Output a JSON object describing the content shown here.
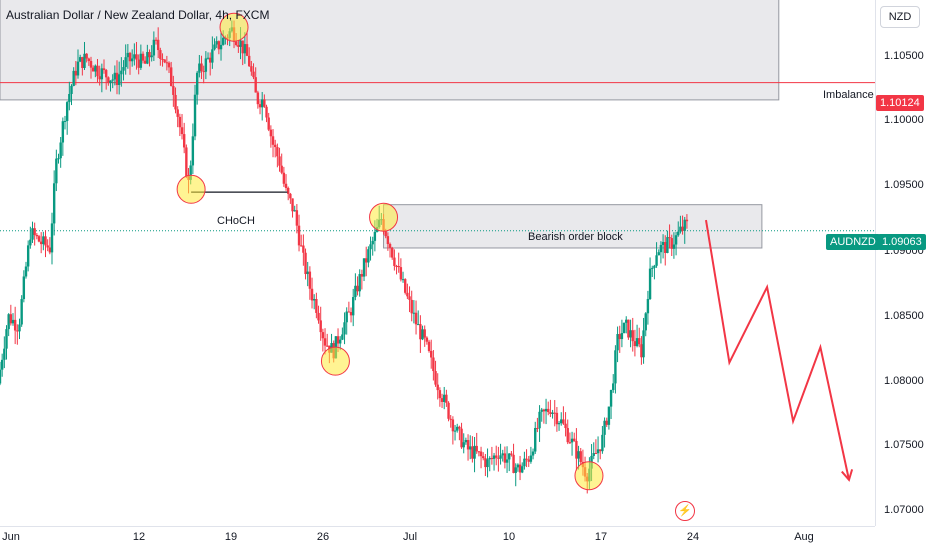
{
  "header": {
    "title": "Australian Dollar / New Zealand Dollar, 4h, FXCM",
    "currency": "NZD"
  },
  "chart_data": {
    "type": "candlestick",
    "symbol": "AUDNZD",
    "ylim": [
      1.0695,
      1.10715
    ],
    "y_ticks": [
      "1.10500",
      "1.10000",
      "1.09500",
      "1.09000",
      "1.08500",
      "1.08000",
      "1.07500",
      "1.07000"
    ],
    "y_tick_values": [
      1.105,
      1.1,
      1.095,
      1.09,
      1.085,
      1.08,
      1.075,
      1.07
    ],
    "x_ticks": [
      "Jun",
      "12",
      "19",
      "26",
      "Jul",
      "10",
      "17",
      "24",
      "Aug"
    ],
    "x_tick_days": [
      1,
      12,
      19,
      26,
      32,
      41,
      48,
      55,
      63
    ],
    "xlim_days": [
      0.7,
      68
    ],
    "last_price": {
      "label": "AUDNZD",
      "value": "1.09063",
      "numeric": 1.09063,
      "color": "#089981"
    },
    "imbalance": {
      "label": "Imbalance",
      "value": "1.10124",
      "numeric": 1.10124,
      "color": "#f23645",
      "zone": [
        1.1,
        1.1087
      ],
      "zone_days": [
        0.7,
        60.6
      ]
    },
    "order_block": {
      "label": "Bearish order block",
      "zone": [
        1.0894,
        1.0925
      ],
      "zone_days": [
        30.2,
        59.3
      ]
    },
    "choch": {
      "label": "CHoCH",
      "level": 1.0934,
      "days": [
        15.4,
        22.8
      ]
    },
    "highlighted_points": [
      {
        "day": 15.4,
        "price": 1.0936
      },
      {
        "day": 18.7,
        "price": 1.1052
      },
      {
        "day": 26.5,
        "price": 1.0813
      },
      {
        "day": 30.2,
        "price": 1.0916
      },
      {
        "day": 46.0,
        "price": 1.0731
      }
    ],
    "projection": [
      {
        "day": 55.0,
        "price": 1.0914
      },
      {
        "day": 56.8,
        "price": 1.0812
      },
      {
        "day": 59.7,
        "price": 1.0866
      },
      {
        "day": 61.7,
        "price": 1.077
      },
      {
        "day": 63.8,
        "price": 1.0823
      },
      {
        "day": 66.0,
        "price": 1.0728
      }
    ],
    "price_path": [
      [
        0.7,
        1.0797
      ],
      [
        1.5,
        1.0845
      ],
      [
        2.3,
        1.0838
      ],
      [
        3.2,
        1.0905
      ],
      [
        4.0,
        1.0898
      ],
      [
        4.7,
        1.0894
      ],
      [
        5.2,
        1.0955
      ],
      [
        6.0,
        1.0998
      ],
      [
        6.8,
        1.1025
      ],
      [
        7.5,
        1.103
      ],
      [
        8.3,
        1.1022
      ],
      [
        9.0,
        1.1018
      ],
      [
        9.8,
        1.1014
      ],
      [
        10.5,
        1.1027
      ],
      [
        11.3,
        1.103
      ],
      [
        12.0,
        1.1025
      ],
      [
        12.8,
        1.104
      ],
      [
        13.5,
        1.103
      ],
      [
        14.2,
        1.1008
      ],
      [
        14.8,
        1.0975
      ],
      [
        15.4,
        1.0938
      ],
      [
        16.0,
        1.1018
      ],
      [
        16.8,
        1.1028
      ],
      [
        17.5,
        1.1037
      ],
      [
        18.2,
        1.1045
      ],
      [
        18.7,
        1.105
      ],
      [
        19.4,
        1.104
      ],
      [
        20.0,
        1.1028
      ],
      [
        20.6,
        1.1
      ],
      [
        21.2,
        1.1
      ],
      [
        21.8,
        1.097
      ],
      [
        22.4,
        1.0955
      ],
      [
        22.8,
        1.0935
      ],
      [
        23.5,
        1.092
      ],
      [
        24.2,
        1.0885
      ],
      [
        24.8,
        1.0862
      ],
      [
        25.3,
        1.085
      ],
      [
        25.8,
        1.0828
      ],
      [
        26.5,
        1.082
      ],
      [
        27.2,
        1.0837
      ],
      [
        27.8,
        1.0848
      ],
      [
        28.4,
        1.0868
      ],
      [
        29.0,
        1.0885
      ],
      [
        29.6,
        1.09
      ],
      [
        30.2,
        1.0915
      ],
      [
        30.8,
        1.0898
      ],
      [
        31.4,
        1.088
      ],
      [
        32.0,
        1.0863
      ],
      [
        32.8,
        1.0842
      ],
      [
        33.6,
        1.0825
      ],
      [
        34.4,
        1.08
      ],
      [
        35.2,
        1.078
      ],
      [
        36.0,
        1.0762
      ],
      [
        36.8,
        1.075
      ],
      [
        37.6,
        1.0746
      ],
      [
        38.4,
        1.074
      ],
      [
        39.2,
        1.0748
      ],
      [
        40.0,
        1.0742
      ],
      [
        40.8,
        1.0735
      ],
      [
        41.6,
        1.0745
      ],
      [
        42.4,
        1.0772
      ],
      [
        43.2,
        1.078
      ],
      [
        44.0,
        1.077
      ],
      [
        44.8,
        1.0756
      ],
      [
        45.6,
        1.074
      ],
      [
        46.0,
        1.0732
      ],
      [
        46.6,
        1.0745
      ],
      [
        47.2,
        1.0757
      ],
      [
        47.8,
        1.0785
      ],
      [
        48.4,
        1.083
      ],
      [
        49.0,
        1.0838
      ],
      [
        49.6,
        1.0828
      ],
      [
        50.2,
        1.082
      ],
      [
        50.8,
        1.0872
      ],
      [
        51.4,
        1.0893
      ],
      [
        52.0,
        1.0895
      ],
      [
        52.6,
        1.0898
      ],
      [
        53.2,
        1.0906
      ],
      [
        53.6,
        1.091
      ]
    ]
  }
}
